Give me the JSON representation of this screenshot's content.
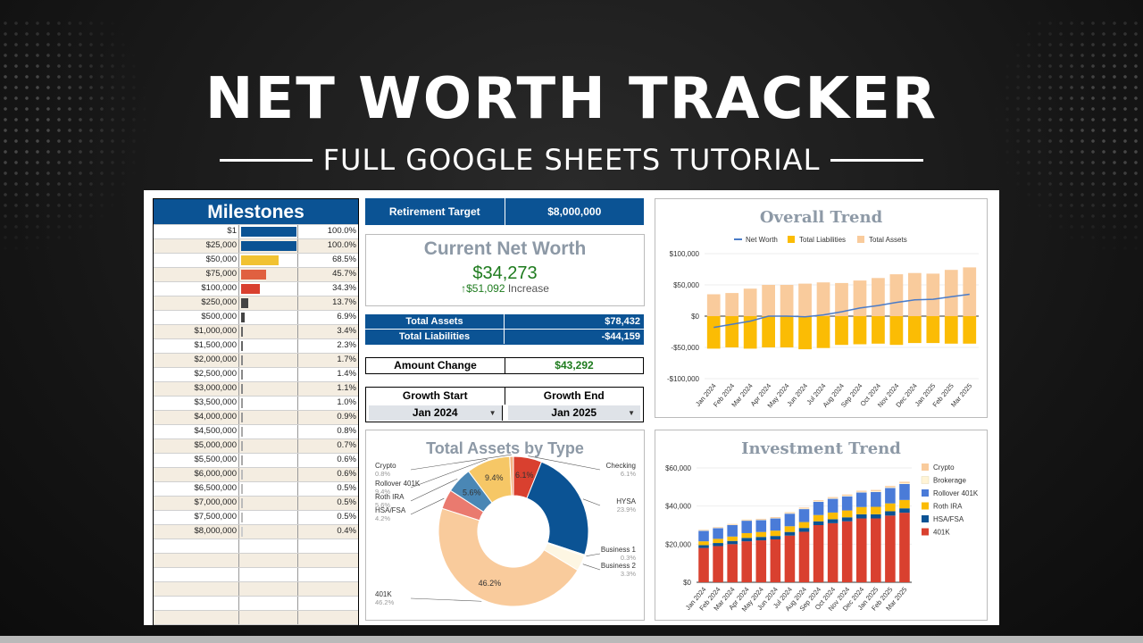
{
  "header": {
    "title": "NET WORTH TRACKER",
    "subtitle": "FULL GOOGLE SHEETS TUTORIAL"
  },
  "milestones": {
    "title": "Milestones",
    "rows": [
      {
        "amount": "$1",
        "pct": "100.0%",
        "fill": 1.0,
        "color": "#0b5394"
      },
      {
        "amount": "$25,000",
        "pct": "100.0%",
        "fill": 1.0,
        "color": "#0b5394"
      },
      {
        "amount": "$50,000",
        "pct": "68.5%",
        "fill": 0.685,
        "color": "#f1c232"
      },
      {
        "amount": "$75,000",
        "pct": "45.7%",
        "fill": 0.457,
        "color": "#e06040"
      },
      {
        "amount": "$100,000",
        "pct": "34.3%",
        "fill": 0.343,
        "color": "#d9402f"
      },
      {
        "amount": "$250,000",
        "pct": "13.7%",
        "fill": 0.137,
        "color": "#444444"
      },
      {
        "amount": "$500,000",
        "pct": "6.9%",
        "fill": 0.069,
        "color": "#444444"
      },
      {
        "amount": "$1,000,000",
        "pct": "3.4%",
        "fill": 0.034,
        "color": "#666666"
      },
      {
        "amount": "$1,500,000",
        "pct": "2.3%",
        "fill": 0.023,
        "color": "#666666"
      },
      {
        "amount": "$2,000,000",
        "pct": "1.7%",
        "fill": 0.017,
        "color": "#888888"
      },
      {
        "amount": "$2,500,000",
        "pct": "1.4%",
        "fill": 0.014,
        "color": "#888888"
      },
      {
        "amount": "$3,000,000",
        "pct": "1.1%",
        "fill": 0.011,
        "color": "#888888"
      },
      {
        "amount": "$3,500,000",
        "pct": "1.0%",
        "fill": 0.01,
        "color": "#999999"
      },
      {
        "amount": "$4,000,000",
        "pct": "0.9%",
        "fill": 0.009,
        "color": "#999999"
      },
      {
        "amount": "$4,500,000",
        "pct": "0.8%",
        "fill": 0.008,
        "color": "#aaaaaa"
      },
      {
        "amount": "$5,000,000",
        "pct": "0.7%",
        "fill": 0.007,
        "color": "#aaaaaa"
      },
      {
        "amount": "$5,500,000",
        "pct": "0.6%",
        "fill": 0.006,
        "color": "#aaaaaa"
      },
      {
        "amount": "$6,000,000",
        "pct": "0.6%",
        "fill": 0.006,
        "color": "#bbbbbb"
      },
      {
        "amount": "$6,500,000",
        "pct": "0.5%",
        "fill": 0.005,
        "color": "#bbbbbb"
      },
      {
        "amount": "$7,000,000",
        "pct": "0.5%",
        "fill": 0.005,
        "color": "#bbbbbb"
      },
      {
        "amount": "$7,500,000",
        "pct": "0.5%",
        "fill": 0.005,
        "color": "#bbbbbb"
      },
      {
        "amount": "$8,000,000",
        "pct": "0.4%",
        "fill": 0.004,
        "color": "#cccccc"
      },
      {
        "amount": "",
        "pct": "",
        "fill": 0,
        "color": "#ffffff"
      },
      {
        "amount": "",
        "pct": "",
        "fill": 0,
        "color": "#ffffff"
      },
      {
        "amount": "",
        "pct": "",
        "fill": 0,
        "color": "#ffffff"
      },
      {
        "amount": "",
        "pct": "",
        "fill": 0,
        "color": "#ffffff"
      },
      {
        "amount": "",
        "pct": "",
        "fill": 0,
        "color": "#ffffff"
      },
      {
        "amount": "",
        "pct": "",
        "fill": 0,
        "color": "#ffffff"
      },
      {
        "amount": "",
        "pct": "",
        "fill": 0,
        "color": "#ffffff"
      }
    ]
  },
  "retirement": {
    "label": "Retirement Target",
    "value": "$8,000,000"
  },
  "net_worth": {
    "title": "Current Net Worth",
    "value": "$34,273",
    "increase_amount": "$51,092",
    "increase_label": "Increase"
  },
  "totals": {
    "assets_label": "Total Assets",
    "assets_value": "$78,432",
    "liabilities_label": "Total Liabilities",
    "liabilities_value": "-$44,159"
  },
  "amount_change": {
    "label": "Amount Change",
    "value": "$43,292"
  },
  "growth": {
    "start_label": "Growth Start",
    "end_label": "Growth End",
    "start_value": "Jan 2024",
    "end_value": "Jan 2025"
  },
  "colors": {
    "brand_blue": "#0b5394",
    "positive_green": "#1e7b1e",
    "assets": "#f9cb9c",
    "liabilities": "#fbbc04",
    "net_worth_line": "#4a7bc8"
  },
  "chart_data": [
    {
      "type": "bar",
      "title": "Overall Trend",
      "categories": [
        "Jan 2024",
        "Feb 2024",
        "Mar 2024",
        "Apr 2024",
        "May 2024",
        "Jun 2024",
        "Jul 2024",
        "Aug 2024",
        "Sep 2024",
        "Oct 2024",
        "Nov 2024",
        "Dec 2024",
        "Jan 2025",
        "Feb 2025",
        "Mar 2025"
      ],
      "series": [
        {
          "name": "Net Worth",
          "kind": "line",
          "color": "#4a7bc8",
          "values": [
            -18000,
            -13000,
            -8000,
            0,
            0,
            -1000,
            2000,
            7000,
            13000,
            17000,
            22000,
            26000,
            27000,
            31000,
            35000
          ]
        },
        {
          "name": "Total Liabilities",
          "kind": "bar",
          "color": "#fbbc04",
          "values": [
            -52000,
            -50000,
            -52000,
            -50000,
            -50000,
            -53000,
            -51000,
            -46000,
            -45000,
            -44000,
            -46000,
            -43000,
            -43000,
            -44000,
            -44000
          ]
        },
        {
          "name": "Total Assets",
          "kind": "bar",
          "color": "#f9cb9c",
          "values": [
            35000,
            37000,
            44000,
            50000,
            50000,
            52000,
            54000,
            53000,
            57000,
            61000,
            67000,
            69000,
            68000,
            74000,
            78000
          ]
        }
      ],
      "yticks": [
        "$100,000",
        "$50,000",
        "$0",
        "-$50,000",
        "-$100,000"
      ],
      "ylim": [
        -100000,
        100000
      ],
      "legend": "top"
    },
    {
      "type": "pie",
      "title": "Total Assets by Type",
      "slices": [
        {
          "name": "Checking",
          "pct": "6.1%",
          "value": 6.1,
          "color": "#d9402f",
          "inner_label": "6.1%"
        },
        {
          "name": "HYSA",
          "pct": "23.9%",
          "value": 23.9,
          "color": "#0b5394",
          "inner_label": ""
        },
        {
          "name": "Business 1",
          "pct": "0.3%",
          "value": 0.3,
          "color": "#fff2cc",
          "inner_label": ""
        },
        {
          "name": "Business 2",
          "pct": "3.3%",
          "value": 3.3,
          "color": "#fdf6e3",
          "inner_label": ""
        },
        {
          "name": "401K",
          "pct": "46.2%",
          "value": 46.2,
          "color": "#f9cb9c",
          "inner_label": "46.2%"
        },
        {
          "name": "HSA/FSA",
          "pct": "4.2%",
          "value": 4.2,
          "color": "#ea7a6f",
          "inner_label": ""
        },
        {
          "name": "Roth IRA",
          "pct": "5.6%",
          "value": 5.6,
          "color": "#4a87b5",
          "inner_label": "5.6%"
        },
        {
          "name": "Rollover 401K",
          "pct": "9.4%",
          "value": 9.4,
          "color": "#f6c766",
          "inner_label": "9.4%"
        },
        {
          "name": "Crypto",
          "pct": "0.8%",
          "value": 0.8,
          "color": "#f4b183",
          "inner_label": ""
        }
      ]
    },
    {
      "type": "bar",
      "stacked": true,
      "title": "Investment Trend",
      "categories": [
        "Jan 2024",
        "Feb 2024",
        "Mar 2024",
        "Apr 2024",
        "May 2024",
        "Jun 2024",
        "Jul 2024",
        "Aug 2024",
        "Sep 2024",
        "Oct 2024",
        "Nov 2024",
        "Dec 2024",
        "Jan 2025",
        "Feb 2025",
        "Mar 2025"
      ],
      "series": [
        {
          "name": "401K",
          "color": "#d9402f",
          "values": [
            18000,
            19000,
            20000,
            21500,
            22000,
            22500,
            24500,
            26500,
            30000,
            31000,
            32000,
            33500,
            33500,
            35000,
            36500
          ]
        },
        {
          "name": "HSA/FSA",
          "color": "#0b5394",
          "values": [
            1500,
            1600,
            1700,
            1800,
            1800,
            1800,
            1900,
            2000,
            2000,
            2100,
            2100,
            2200,
            2200,
            2300,
            2300
          ]
        },
        {
          "name": "Roth IRA",
          "color": "#fbbc04",
          "values": [
            2000,
            2200,
            2300,
            2500,
            2600,
            2800,
            3000,
            3100,
            3300,
            3500,
            3600,
            3800,
            3900,
            4100,
            4400
          ]
        },
        {
          "name": "Rollover 401K",
          "color": "#4a7bd8",
          "values": [
            5500,
            5600,
            6000,
            6500,
            6200,
            6400,
            6600,
            6800,
            6900,
            7200,
            7400,
            7600,
            7800,
            8100,
            8400
          ]
        },
        {
          "name": "Brokerage",
          "color": "#fff4d6",
          "values": [
            200,
            200,
            250,
            250,
            300,
            300,
            300,
            350,
            350,
            400,
            400,
            400,
            450,
            450,
            500
          ]
        },
        {
          "name": "Crypto",
          "color": "#f9cb9c",
          "values": [
            300,
            300,
            350,
            350,
            400,
            400,
            450,
            450,
            500,
            500,
            550,
            550,
            600,
            600,
            650
          ]
        }
      ],
      "yticks": [
        "$60,000",
        "$40,000",
        "$20,000",
        "$0"
      ],
      "ylim": [
        0,
        60000
      ],
      "legend": "right"
    }
  ]
}
